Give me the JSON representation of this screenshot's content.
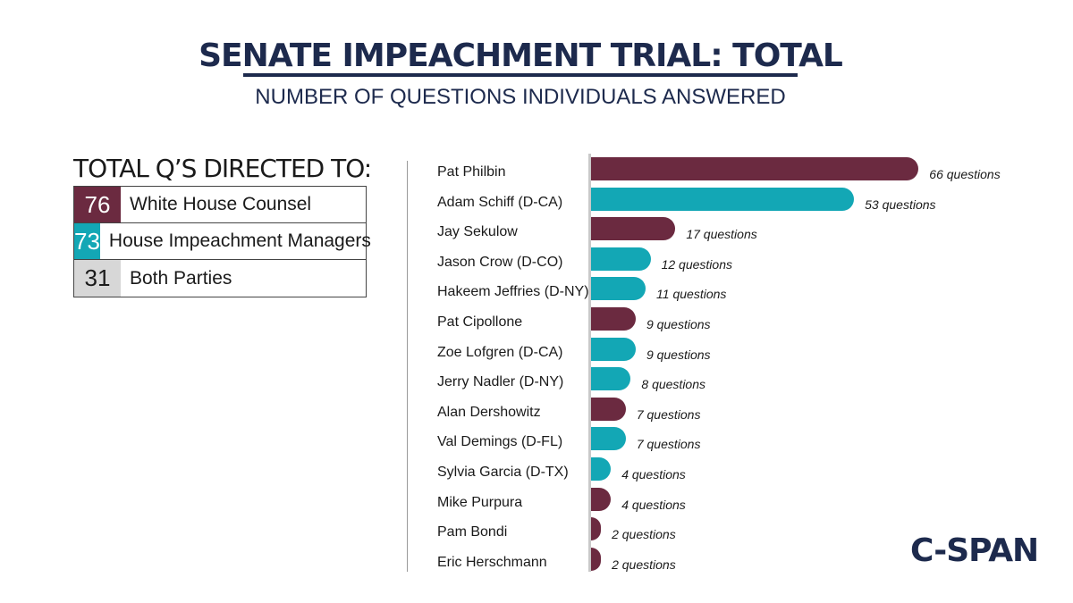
{
  "title": "SENATE IMPEACHMENT TRIAL: TOTAL",
  "subtitle": "NUMBER OF QUESTIONS INDIVIDUALS ANSWERED",
  "summary": {
    "heading": "TOTAL Q’S DIRECTED TO:",
    "rows": [
      {
        "count": "76",
        "label": "White House Counsel",
        "color": "#6b2a40"
      },
      {
        "count": "73",
        "label": "House Impeachment Managers",
        "color": "#13a7b5"
      },
      {
        "count": "31",
        "label": "Both Parties",
        "color": "#d7d7d7"
      }
    ]
  },
  "logo": "C-SPAN",
  "chart_data": {
    "type": "bar",
    "orientation": "horizontal",
    "value_suffix": "questions",
    "colors": {
      "white_house": "#6b2a40",
      "house_managers": "#13a7b5"
    },
    "bars": [
      {
        "name": "Pat Philbin",
        "value": 66,
        "label": "66 questions",
        "group": "white_house"
      },
      {
        "name": "Adam Schiff (D-CA)",
        "value": 53,
        "label": "53 questions",
        "group": "house_managers"
      },
      {
        "name": "Jay Sekulow",
        "value": 17,
        "label": "17 questions",
        "group": "white_house"
      },
      {
        "name": "Jason Crow (D-CO)",
        "value": 12,
        "label": "12 questions",
        "group": "house_managers"
      },
      {
        "name": "Hakeem Jeffries (D-NY)",
        "value": 11,
        "label": "11 questions",
        "group": "house_managers"
      },
      {
        "name": "Pat Cipollone",
        "value": 9,
        "label": "9 questions",
        "group": "white_house"
      },
      {
        "name": "Zoe Lofgren (D-CA)",
        "value": 9,
        "label": "9 questions",
        "group": "house_managers"
      },
      {
        "name": "Jerry Nadler (D-NY)",
        "value": 8,
        "label": "8 questions",
        "group": "house_managers"
      },
      {
        "name": "Alan Dershowitz",
        "value": 7,
        "label": "7 questions",
        "group": "white_house"
      },
      {
        "name": "Val Demings (D-FL)",
        "value": 7,
        "label": "7 questions",
        "group": "house_managers"
      },
      {
        "name": "Sylvia Garcia (D-TX)",
        "value": 4,
        "label": "4 questions",
        "group": "house_managers"
      },
      {
        "name": "Mike Purpura",
        "value": 4,
        "label": "4 questions",
        "group": "white_house"
      },
      {
        "name": "Pam Bondi",
        "value": 2,
        "label": "2 questions",
        "group": "white_house"
      },
      {
        "name": "Eric Herschmann",
        "value": 2,
        "label": "2 questions",
        "group": "white_house"
      }
    ]
  }
}
